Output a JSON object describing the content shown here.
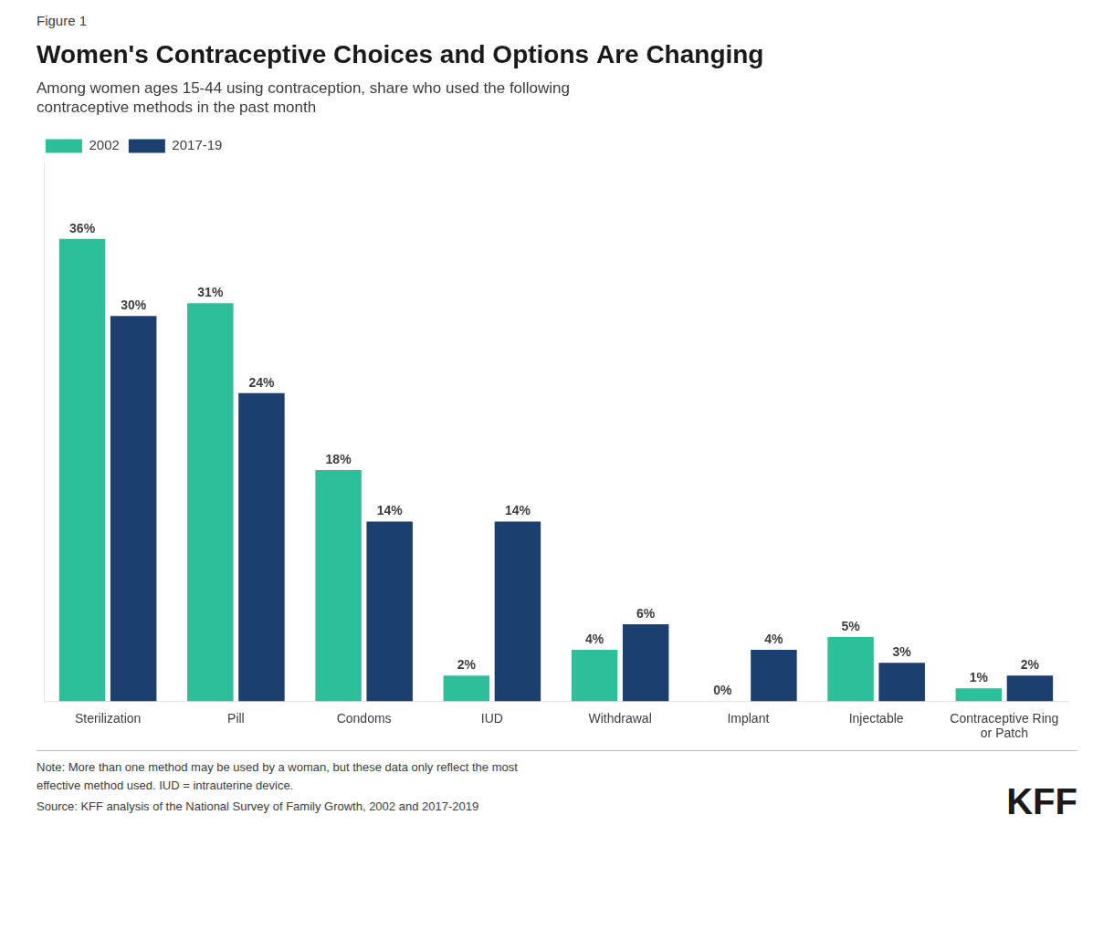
{
  "chart_data": {
    "type": "bar",
    "title": "Women's Contraceptive Choices and Options Are Changing",
    "subtitle": "Among women ages 15-44 using contraception, share who used the following\ncontraceptive methods in the past month",
    "annotations": [
      "Figure 1",
      "Note: More than one method may be used by a woman, but these data only reflect the most\neffective method used. IUD = intrauterine device.",
      "Source: KFF analysis of the National Survey of Family Growth, 2002 and 2017-2019",
      "KFF"
    ],
    "categories": [
      "Sterilization",
      "Pill",
      "Condoms",
      "IUD",
      "Withdrawal",
      "Implant",
      "Injectable",
      "Contraceptive Ring\nor Patch"
    ],
    "series": [
      {
        "name": "2002",
        "color": "#2dbf9a",
        "values": [
          36,
          31,
          18,
          2,
          4,
          0,
          5,
          1
        ],
        "value_labels": [
          "36%",
          "31%",
          "18%",
          "2%",
          "4%",
          "0%",
          "5%",
          "1%"
        ]
      },
      {
        "name": "2017-19",
        "color": "#1b3f6e",
        "values": [
          30,
          24,
          14,
          14,
          6,
          4,
          3,
          2
        ],
        "value_labels": [
          "30%",
          "24%",
          "14%",
          "14%",
          "6%",
          "4%",
          "3%",
          "2%"
        ]
      }
    ],
    "ylim": [
      0,
      42
    ],
    "grid": false,
    "legend": "top-left",
    "data_labels": true,
    "tick_labels": "x"
  }
}
